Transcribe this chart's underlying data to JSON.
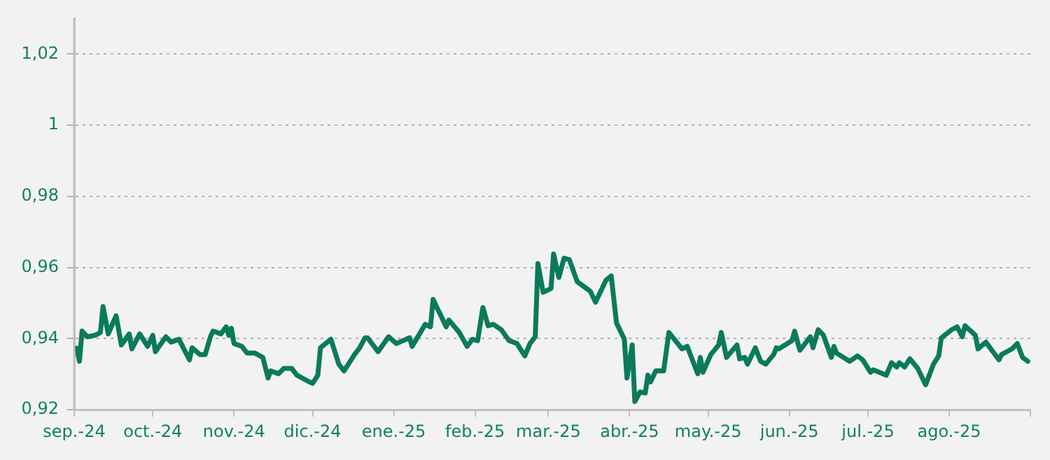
{
  "chart_data": {
    "type": "line",
    "xlim": [
      "2024-09-01",
      "2025-09-01"
    ],
    "ylim": [
      0.92,
      1.03
    ],
    "xticks": [
      {
        "value": "2024-09-01",
        "label": "sep.-24"
      },
      {
        "value": "2024-10-01",
        "label": "oct.-24"
      },
      {
        "value": "2024-11-01",
        "label": "nov.-24"
      },
      {
        "value": "2024-12-01",
        "label": "dic.-24"
      },
      {
        "value": "2025-01-01",
        "label": "ene.-25"
      },
      {
        "value": "2025-02-01",
        "label": "feb.-25"
      },
      {
        "value": "2025-03-01",
        "label": "mar.-25"
      },
      {
        "value": "2025-04-01",
        "label": "abr.-25"
      },
      {
        "value": "2025-05-01",
        "label": "may.-25"
      },
      {
        "value": "2025-06-01",
        "label": "jun.-25"
      },
      {
        "value": "2025-07-01",
        "label": "jul.-25"
      },
      {
        "value": "2025-08-01",
        "label": "ago.-25"
      },
      {
        "value": "2025-09-01",
        "label": null
      }
    ],
    "yticks": [
      {
        "value": 0.92,
        "label": "0,92"
      },
      {
        "value": 0.94,
        "label": "0,94"
      },
      {
        "value": 0.96,
        "label": "0,96"
      },
      {
        "value": 0.98,
        "label": "0,98"
      },
      1,
      {
        "value": 1.02,
        "label": "1,02"
      }
    ],
    "grid": "y",
    "legend": false,
    "marker": "none",
    "line_style": "solid",
    "x": [
      "2024-09-02",
      "2024-09-03",
      "2024-09-04",
      "2024-09-06",
      "2024-09-09",
      "2024-09-11",
      "2024-09-12",
      "2024-09-14",
      "2024-09-17",
      "2024-09-19",
      "2024-09-22",
      "2024-09-23",
      "2024-09-26",
      "2024-09-29",
      "2024-10-01",
      "2024-10-02",
      "2024-10-06",
      "2024-10-08",
      "2024-10-11",
      "2024-10-15",
      "2024-10-16",
      "2024-10-19",
      "2024-10-21",
      "2024-10-23",
      "2024-10-24",
      "2024-10-27",
      "2024-10-29",
      "2024-10-30",
      "2024-10-31",
      "2024-11-01",
      "2024-11-04",
      "2024-11-06",
      "2024-11-09",
      "2024-11-12",
      "2024-11-14",
      "2024-11-15",
      "2024-11-18",
      "2024-11-20",
      "2024-11-23",
      "2024-11-25",
      "2024-11-29",
      "2024-12-01",
      "2024-12-03",
      "2024-12-04",
      "2024-12-08",
      "2024-12-11",
      "2024-12-13",
      "2024-12-17",
      "2024-12-19",
      "2024-12-21",
      "2024-12-22",
      "2024-12-26",
      "2024-12-30",
      "2025-01-02",
      "2025-01-07",
      "2025-01-08",
      "2025-01-13",
      "2025-01-15",
      "2025-01-16",
      "2025-01-21",
      "2025-01-22",
      "2025-01-26",
      "2025-01-29",
      "2025-01-31",
      "2025-02-02",
      "2025-02-04",
      "2025-02-06",
      "2025-02-08",
      "2025-02-11",
      "2025-02-14",
      "2025-02-17",
      "2025-02-20",
      "2025-02-22",
      "2025-02-24",
      "2025-02-25",
      "2025-02-27",
      "2025-03-02",
      "2025-03-03",
      "2025-03-05",
      "2025-03-07",
      "2025-03-09",
      "2025-03-12",
      "2025-03-17",
      "2025-03-19",
      "2025-03-23",
      "2025-03-25",
      "2025-03-27",
      "2025-03-30",
      "2025-03-31",
      "2025-04-02",
      "2025-04-03",
      "2025-04-05",
      "2025-04-07",
      "2025-04-08",
      "2025-04-09",
      "2025-04-11",
      "2025-04-14",
      "2025-04-16",
      "2025-04-21",
      "2025-04-23",
      "2025-04-27",
      "2025-04-28",
      "2025-04-29",
      "2025-05-02",
      "2025-05-05",
      "2025-05-06",
      "2025-05-08",
      "2025-05-12",
      "2025-05-13",
      "2025-05-15",
      "2025-05-16",
      "2025-05-19",
      "2025-05-21",
      "2025-05-23",
      "2025-05-26",
      "2025-05-27",
      "2025-05-28",
      "2025-06-02",
      "2025-06-03",
      "2025-06-05",
      "2025-06-09",
      "2025-06-10",
      "2025-06-12",
      "2025-06-14",
      "2025-06-17",
      "2025-06-18",
      "2025-06-19",
      "2025-06-24",
      "2025-06-27",
      "2025-06-29",
      "2025-07-02",
      "2025-07-03",
      "2025-07-08",
      "2025-07-10",
      "2025-07-12",
      "2025-07-13",
      "2025-07-15",
      "2025-07-17",
      "2025-07-20",
      "2025-07-23",
      "2025-07-26",
      "2025-07-28",
      "2025-07-29",
      "2025-08-02",
      "2025-08-04",
      "2025-08-06",
      "2025-08-07",
      "2025-08-11",
      "2025-08-12",
      "2025-08-15",
      "2025-08-20",
      "2025-08-21",
      "2025-08-25",
      "2025-08-27",
      "2025-08-29",
      "2025-08-31"
    ],
    "series": [
      {
        "color": "#0b7a5b",
        "values": [
          0.9373,
          0.9336,
          0.9421,
          0.9405,
          0.9409,
          0.9417,
          0.949,
          0.9413,
          0.9464,
          0.9382,
          0.9413,
          0.9371,
          0.9413,
          0.9378,
          0.9409,
          0.9363,
          0.9405,
          0.939,
          0.9398,
          0.934,
          0.9374,
          0.9355,
          0.9355,
          0.9405,
          0.9421,
          0.9413,
          0.9433,
          0.9409,
          0.9429,
          0.9386,
          0.9378,
          0.9359,
          0.9359,
          0.9347,
          0.9289,
          0.9309,
          0.9301,
          0.9316,
          0.9316,
          0.9297,
          0.9281,
          0.9274,
          0.9297,
          0.9374,
          0.9398,
          0.9328,
          0.9309,
          0.9355,
          0.9374,
          0.9402,
          0.9402,
          0.9363,
          0.9405,
          0.9386,
          0.9402,
          0.9378,
          0.944,
          0.9433,
          0.951,
          0.9433,
          0.9452,
          0.9417,
          0.9378,
          0.9398,
          0.9394,
          0.9487,
          0.9436,
          0.944,
          0.9425,
          0.9394,
          0.9386,
          0.9351,
          0.9386,
          0.9405,
          0.9611,
          0.953,
          0.9541,
          0.9638,
          0.9572,
          0.9626,
          0.9622,
          0.956,
          0.9533,
          0.9502,
          0.9564,
          0.9576,
          0.9444,
          0.9398,
          0.9289,
          0.9382,
          0.9223,
          0.925,
          0.9247,
          0.9297,
          0.9278,
          0.9309,
          0.9309,
          0.9417,
          0.9371,
          0.9378,
          0.9301,
          0.9347,
          0.9305,
          0.9355,
          0.9382,
          0.9417,
          0.9347,
          0.9382,
          0.9343,
          0.9347,
          0.9328,
          0.9374,
          0.9336,
          0.9328,
          0.9355,
          0.9374,
          0.9371,
          0.9394,
          0.9421,
          0.9367,
          0.9405,
          0.9374,
          0.9425,
          0.9409,
          0.9347,
          0.9378,
          0.9359,
          0.9336,
          0.9351,
          0.934,
          0.9305,
          0.9312,
          0.9297,
          0.9332,
          0.932,
          0.9332,
          0.932,
          0.9343,
          0.9316,
          0.927,
          0.9328,
          0.9351,
          0.9402,
          0.9425,
          0.9433,
          0.9405,
          0.9436,
          0.9409,
          0.9371,
          0.939,
          0.934,
          0.9355,
          0.9371,
          0.9386,
          0.9347,
          0.9336
        ]
      }
    ]
  }
}
